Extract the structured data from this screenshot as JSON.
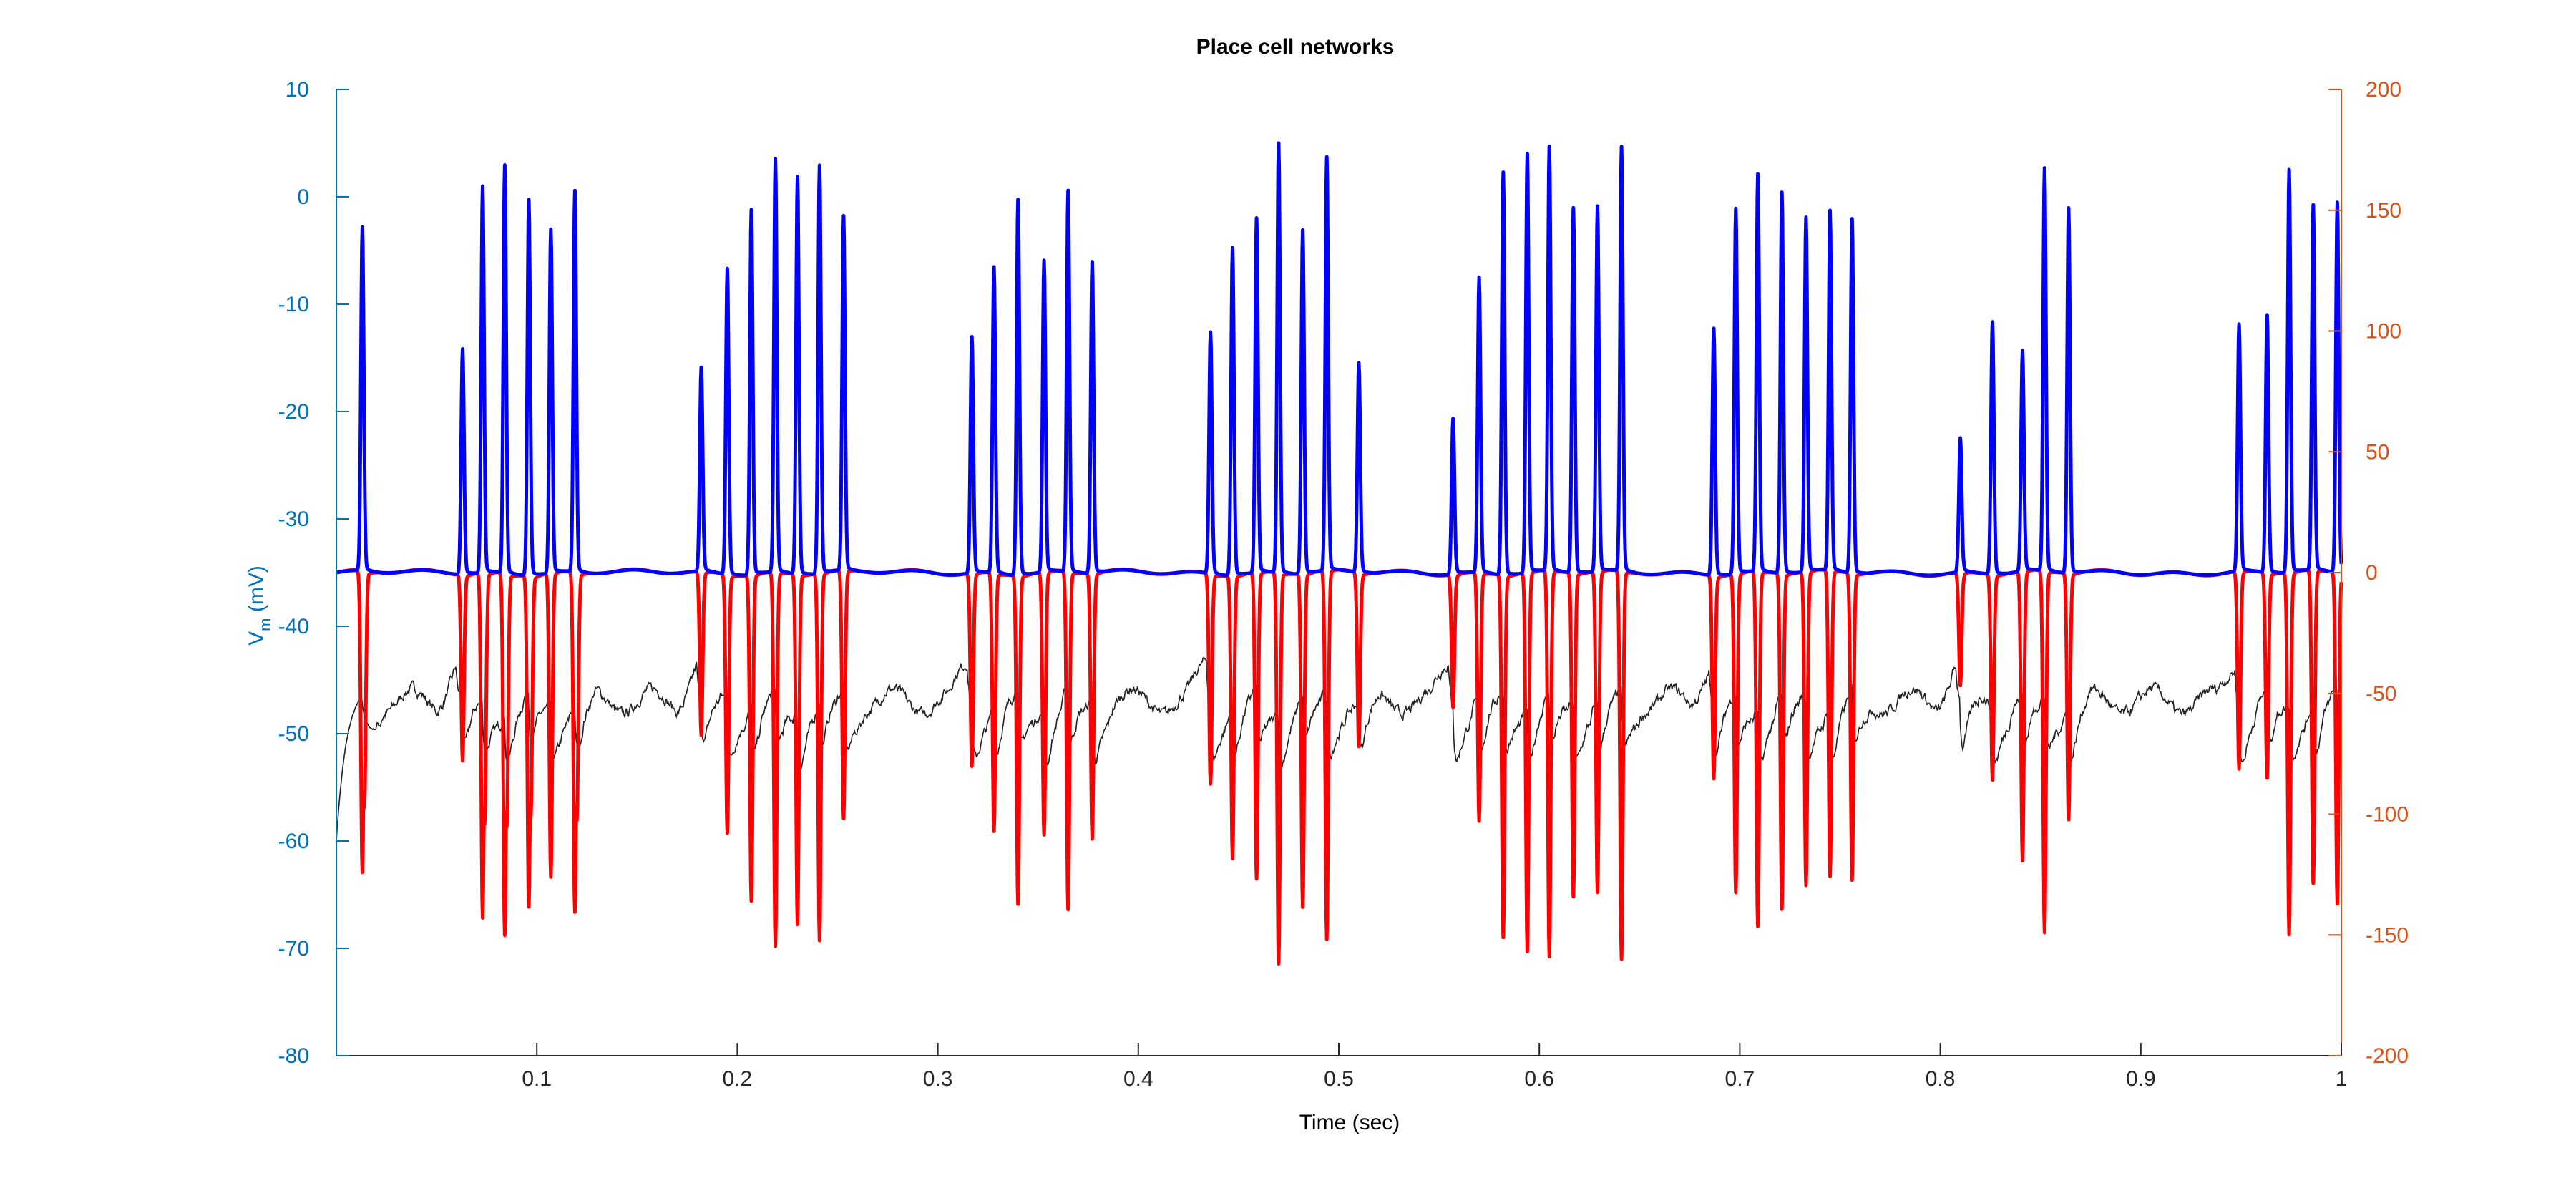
{
  "chart_data": {
    "type": "line",
    "title": "Place cell networks",
    "xlabel": "Time (sec)",
    "ylabel_left": "V",
    "ylabel_left_sub": "m",
    "ylabel_left_unit": " (mV)",
    "ylabel_right": "",
    "xlim": [
      0,
      1
    ],
    "ylim_left": [
      -80,
      10
    ],
    "ylim_right": [
      -200,
      200
    ],
    "x_ticks": [
      0.1,
      0.2,
      0.3,
      0.4,
      0.5,
      0.6,
      0.7,
      0.8,
      0.9,
      1
    ],
    "x_tick_labels": [
      "0.1",
      "0.2",
      "0.3",
      "0.4",
      "0.5",
      "0.6",
      "0.7",
      "0.8",
      "0.9",
      "1"
    ],
    "y_left_ticks": [
      10,
      0,
      -10,
      -20,
      -30,
      -40,
      -50,
      -60,
      -70,
      -80
    ],
    "y_left_tick_labels": [
      "10",
      "0",
      "-10",
      "-20",
      "-30",
      "-40",
      "-50",
      "-60",
      "-70",
      "-80"
    ],
    "y_right_ticks": [
      200,
      150,
      100,
      50,
      0,
      -50,
      -100,
      -150,
      -200
    ],
    "y_right_tick_labels": [
      "200",
      "150",
      "100",
      "50",
      "0",
      "-50",
      "-100",
      "-150",
      "-200"
    ],
    "grid": false,
    "legend": "none",
    "colors": {
      "left_axis": "#0072bd",
      "right_axis": "#d95319",
      "membrane_potential": "#0000ff",
      "current": "#ff0000",
      "input": "#222222"
    },
    "series": [
      {
        "axis": "left",
        "baseline": -35,
        "spikes": [
          [
            0.013,
            -3
          ],
          [
            0.063,
            -14
          ],
          [
            0.073,
            1
          ],
          [
            0.084,
            3
          ],
          [
            0.096,
            0
          ],
          [
            0.107,
            -3
          ],
          [
            0.119,
            0.5
          ],
          [
            0.182,
            -16
          ],
          [
            0.195,
            -6.5
          ],
          [
            0.207,
            -1
          ],
          [
            0.219,
            3.5
          ],
          [
            0.23,
            2
          ],
          [
            0.241,
            3
          ],
          [
            0.253,
            -2
          ],
          [
            0.317,
            -13
          ],
          [
            0.328,
            -6.5
          ],
          [
            0.34,
            0
          ],
          [
            0.353,
            -6
          ],
          [
            0.365,
            0.5
          ],
          [
            0.377,
            -6
          ],
          [
            0.436,
            -12.5
          ],
          [
            0.447,
            -4.5
          ],
          [
            0.459,
            -2
          ],
          [
            0.47,
            5
          ],
          [
            0.482,
            -3
          ],
          [
            0.494,
            3.5
          ],
          [
            0.51,
            -15.5
          ],
          [
            0.557,
            -20.5
          ],
          [
            0.57,
            -7.5
          ],
          [
            0.582,
            2.5
          ],
          [
            0.594,
            4
          ],
          [
            0.605,
            4.5
          ],
          [
            0.617,
            -1
          ],
          [
            0.629,
            -1
          ],
          [
            0.641,
            4.5
          ],
          [
            0.687,
            -12
          ],
          [
            0.698,
            -1
          ],
          [
            0.709,
            2
          ],
          [
            0.721,
            0.5
          ],
          [
            0.733,
            -2
          ],
          [
            0.745,
            -1.5
          ],
          [
            0.756,
            -2
          ],
          [
            0.81,
            -22.5
          ],
          [
            0.826,
            -11.5
          ],
          [
            0.841,
            -14.5
          ],
          [
            0.852,
            2.5
          ],
          [
            0.864,
            -1
          ],
          [
            0.949,
            -12
          ],
          [
            0.963,
            -11
          ],
          [
            0.974,
            2.5
          ],
          [
            0.986,
            -1
          ],
          [
            0.998,
            -0.5
          ]
        ]
      },
      {
        "axis": "right",
        "baseline": 0,
        "spikes": [
          [
            0.013,
            -125
          ],
          [
            0.014,
            -98
          ],
          [
            0.063,
            -77
          ],
          [
            0.073,
            -143
          ],
          [
            0.074,
            -104
          ],
          [
            0.084,
            -150
          ],
          [
            0.085,
            -105
          ],
          [
            0.096,
            -137
          ],
          [
            0.097,
            -100
          ],
          [
            0.107,
            -126
          ],
          [
            0.119,
            -141
          ],
          [
            0.12,
            -103
          ],
          [
            0.182,
            -68
          ],
          [
            0.195,
            -107
          ],
          [
            0.207,
            -135
          ],
          [
            0.219,
            -155
          ],
          [
            0.23,
            -145
          ],
          [
            0.241,
            -152
          ],
          [
            0.253,
            -103
          ],
          [
            0.317,
            -80
          ],
          [
            0.328,
            -107
          ],
          [
            0.34,
            -136
          ],
          [
            0.353,
            -109
          ],
          [
            0.365,
            -140
          ],
          [
            0.377,
            -110
          ],
          [
            0.436,
            -87
          ],
          [
            0.447,
            -117
          ],
          [
            0.459,
            -127
          ],
          [
            0.47,
            -162
          ],
          [
            0.482,
            -138
          ],
          [
            0.494,
            -153
          ],
          [
            0.51,
            -72
          ],
          [
            0.557,
            -55
          ],
          [
            0.57,
            -103
          ],
          [
            0.582,
            -150
          ],
          [
            0.594,
            -157
          ],
          [
            0.605,
            -160
          ],
          [
            0.617,
            -134
          ],
          [
            0.629,
            -133
          ],
          [
            0.641,
            -161
          ],
          [
            0.687,
            -84
          ],
          [
            0.698,
            -132
          ],
          [
            0.709,
            -147
          ],
          [
            0.721,
            -139
          ],
          [
            0.733,
            -130
          ],
          [
            0.745,
            -127
          ],
          [
            0.756,
            -127
          ],
          [
            0.81,
            -47
          ],
          [
            0.826,
            -85
          ],
          [
            0.841,
            -120
          ],
          [
            0.852,
            -150
          ],
          [
            0.864,
            -102
          ],
          [
            0.949,
            -82
          ],
          [
            0.963,
            -85
          ],
          [
            0.974,
            -150
          ],
          [
            0.986,
            -130
          ],
          [
            0.998,
            -137
          ]
        ]
      },
      {
        "axis": "left",
        "baseline": -47,
        "start_value": -61,
        "description_free": true
      }
    ]
  }
}
